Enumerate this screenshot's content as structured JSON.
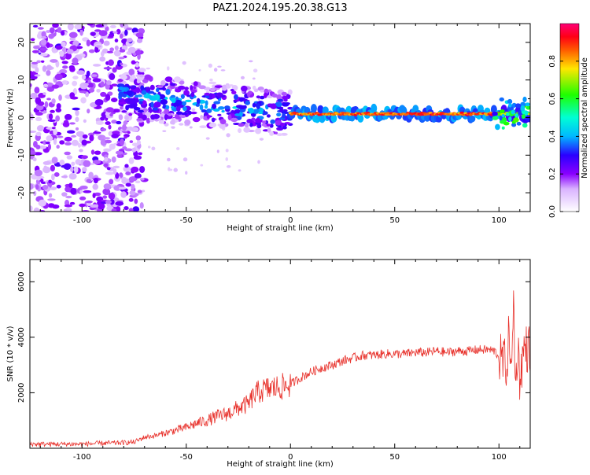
{
  "figure": {
    "title": "PAZ1.2024.195.20.38.G13"
  },
  "chart_data": [
    {
      "type": "heatmap",
      "xlabel": "Height of straight line (km)",
      "ylabel": "Frequency (Hz)",
      "xlim": [
        -125,
        115
      ],
      "ylim": [
        -25,
        25
      ],
      "xticks": [
        -100,
        -50,
        0,
        50,
        100
      ],
      "yticks": [
        -20,
        -10,
        0,
        10,
        20
      ],
      "colorbar": {
        "label": "Normalized spectral amplitude",
        "range": [
          0.0,
          1.0
        ],
        "ticks": [
          0.0,
          0.2,
          0.4,
          0.6,
          0.8
        ],
        "colormap": "gist_rainbow_r"
      },
      "features": [
        {
          "name": "tone",
          "x_range": [
            0,
            100
          ],
          "frequency_hz": 1,
          "amplitude": 0.9
        },
        {
          "name": "tone-transition",
          "x_range": [
            -75,
            0
          ],
          "frequency_hz_start": 6,
          "frequency_hz_end": 1,
          "amplitude": 0.35
        },
        {
          "name": "noise",
          "x_range": [
            -125,
            -72
          ],
          "frequency_hz_range": [
            -25,
            25
          ],
          "amplitude": 0.15
        }
      ],
      "grid": false
    },
    {
      "type": "line",
      "xlabel": "Height of straight line (km)",
      "ylabel": "SNR (10 * v/v)",
      "xlim": [
        -125,
        115
      ],
      "ylim": [
        0,
        6800
      ],
      "xticks": [
        -100,
        -50,
        0,
        50,
        100
      ],
      "yticks": [
        2000,
        4000,
        6000
      ],
      "color": "#e8322c",
      "series": [
        {
          "x": [
            -125,
            -110,
            -100,
            -90,
            -80,
            -75,
            -70,
            -65,
            -60,
            -55,
            -50,
            -45,
            -40,
            -35,
            -30,
            -25,
            -20,
            -18,
            -15,
            -10,
            -5,
            0,
            5,
            10,
            15,
            20,
            25,
            30,
            35,
            40,
            45,
            50,
            55,
            60,
            65,
            70,
            75,
            80,
            85,
            90,
            95,
            98,
            100,
            102,
            104,
            105,
            106,
            107,
            108,
            109,
            110,
            112,
            115
          ],
          "y": [
            150,
            150,
            150,
            180,
            200,
            220,
            400,
            450,
            550,
            650,
            750,
            900,
            1000,
            1150,
            1250,
            1450,
            1600,
            1850,
            2050,
            2150,
            2200,
            2300,
            2550,
            2750,
            2900,
            3000,
            3150,
            3250,
            3350,
            3350,
            3400,
            3400,
            3400,
            3450,
            3450,
            3500,
            3450,
            3500,
            3500,
            3550,
            3550,
            3500,
            3300,
            3150,
            3000,
            4500,
            2200,
            5500,
            2000,
            3800,
            2500,
            3600,
            3600
          ]
        }
      ],
      "grid": false
    }
  ]
}
